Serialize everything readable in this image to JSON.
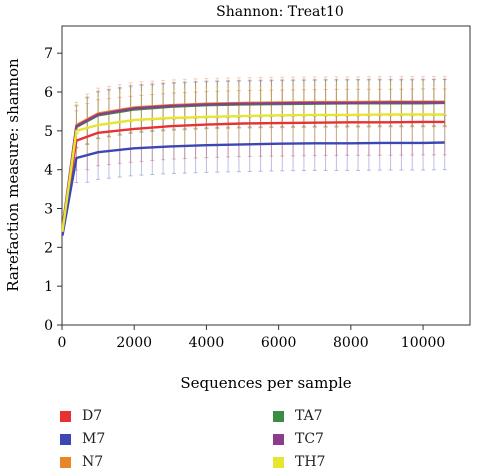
{
  "chart_data": {
    "type": "line",
    "title": "Shannon: Treat10",
    "xlabel": "Sequences per sample",
    "ylabel": "Rarefaction measure: shannon",
    "xlim": [
      0,
      11300
    ],
    "ylim": [
      0,
      7.7
    ],
    "x_ticks": [
      "0",
      "2000",
      "4000",
      "6000",
      "8000",
      "10000"
    ],
    "y_ticks": [
      "0",
      "1",
      "2",
      "3",
      "4",
      "5",
      "6",
      "7"
    ],
    "grid": false,
    "legend_position": "bottom",
    "error_bars": true,
    "x": [
      10,
      400,
      1000,
      2000,
      3000,
      4000,
      5000,
      6000,
      7000,
      8000,
      9000,
      10000,
      10600
    ],
    "series": [
      {
        "name": "D7",
        "color": "#e63232",
        "values": [
          2.4,
          4.75,
          4.95,
          5.05,
          5.12,
          5.16,
          5.19,
          5.2,
          5.21,
          5.22,
          5.22,
          5.23,
          5.23
        ],
        "error": 0.85
      },
      {
        "name": "M7",
        "color": "#3c46b4",
        "values": [
          2.3,
          4.3,
          4.45,
          4.55,
          4.6,
          4.63,
          4.65,
          4.67,
          4.68,
          4.68,
          4.69,
          4.69,
          4.7
        ],
        "error": 0.7
      },
      {
        "name": "N7",
        "color": "#e8872a",
        "values": [
          2.5,
          5.15,
          5.45,
          5.6,
          5.66,
          5.7,
          5.72,
          5.73,
          5.74,
          5.74,
          5.75,
          5.75,
          5.75
        ],
        "error": 0.65
      },
      {
        "name": "TA7",
        "color": "#3c8c46",
        "values": [
          2.45,
          5.1,
          5.4,
          5.55,
          5.62,
          5.66,
          5.68,
          5.69,
          5.7,
          5.71,
          5.71,
          5.71,
          5.72
        ],
        "error": 0.6
      },
      {
        "name": "TC7",
        "color": "#8c3c8c",
        "values": [
          2.45,
          5.12,
          5.42,
          5.58,
          5.64,
          5.68,
          5.7,
          5.71,
          5.72,
          5.72,
          5.73,
          5.73,
          5.73
        ],
        "error": 0.6
      },
      {
        "name": "TH7",
        "color": "#e6e632",
        "values": [
          2.4,
          5.0,
          5.15,
          5.28,
          5.33,
          5.36,
          5.38,
          5.4,
          5.41,
          5.41,
          5.42,
          5.42,
          5.42
        ],
        "error": 0.75
      }
    ]
  }
}
